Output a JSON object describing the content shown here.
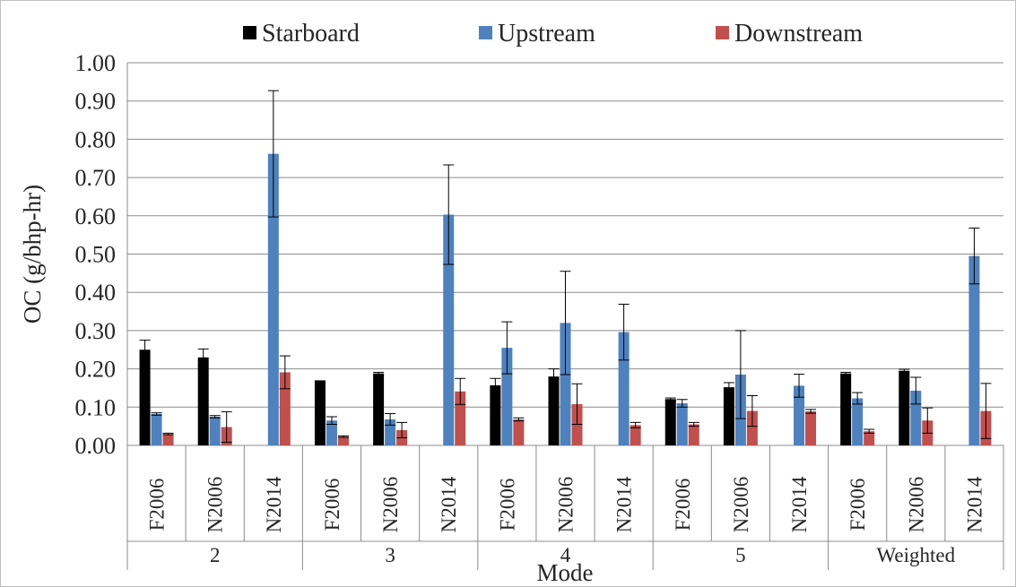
{
  "chart_data": {
    "type": "bar",
    "ylabel": "OC (g/bhp-hr)",
    "xlabel": "Mode",
    "ylim": [
      0,
      1.0
    ],
    "yticks": [
      "0.00",
      "0.10",
      "0.20",
      "0.30",
      "0.40",
      "0.50",
      "0.60",
      "0.70",
      "0.80",
      "0.90",
      "1.00"
    ],
    "grid": true,
    "legend_position": "top",
    "groups": [
      {
        "name": "2",
        "categories": [
          "F2006",
          "N2006",
          "N2014"
        ]
      },
      {
        "name": "3",
        "categories": [
          "F2006",
          "N2006",
          "N2014"
        ]
      },
      {
        "name": "4",
        "categories": [
          "F2006",
          "N2006",
          "N2014"
        ]
      },
      {
        "name": "5",
        "categories": [
          "F2006",
          "N2006",
          "N2014"
        ]
      },
      {
        "name": "Weighted",
        "categories": [
          "F2006",
          "N2006",
          "N2014"
        ]
      }
    ],
    "series": [
      {
        "name": "Starboard",
        "color": "#000000",
        "values": [
          0.25,
          0.23,
          null,
          0.17,
          0.188,
          null,
          0.157,
          0.18,
          null,
          0.121,
          0.152,
          null,
          0.188,
          0.195,
          null
        ],
        "errors": [
          0.025,
          0.022,
          null,
          0,
          0.003,
          null,
          0.018,
          0.02,
          null,
          0.003,
          0.012,
          null,
          0.003,
          0.004,
          null
        ]
      },
      {
        "name": "Upstream",
        "color": "#4f81bd",
        "values": [
          0.082,
          0.075,
          0.762,
          0.065,
          0.068,
          0.603,
          0.255,
          0.32,
          0.296,
          0.11,
          0.185,
          0.156,
          0.123,
          0.143,
          0.495
        ],
        "errors": [
          0.003,
          0.003,
          0.165,
          0.01,
          0.015,
          0.13,
          0.068,
          0.135,
          0.073,
          0.01,
          0.115,
          0.03,
          0.015,
          0.035,
          0.073
        ]
      },
      {
        "name": "Downstream",
        "color": "#c0504d",
        "values": [
          0.03,
          0.048,
          0.191,
          0.023,
          0.04,
          0.141,
          0.068,
          0.108,
          0.053,
          0.055,
          0.09,
          0.089,
          0.037,
          0.065,
          0.09
        ],
        "errors": [
          0.002,
          0.04,
          0.043,
          0.002,
          0.02,
          0.034,
          0.004,
          0.053,
          0.007,
          0.005,
          0.04,
          0.005,
          0.005,
          0.033,
          0.072
        ]
      }
    ]
  }
}
